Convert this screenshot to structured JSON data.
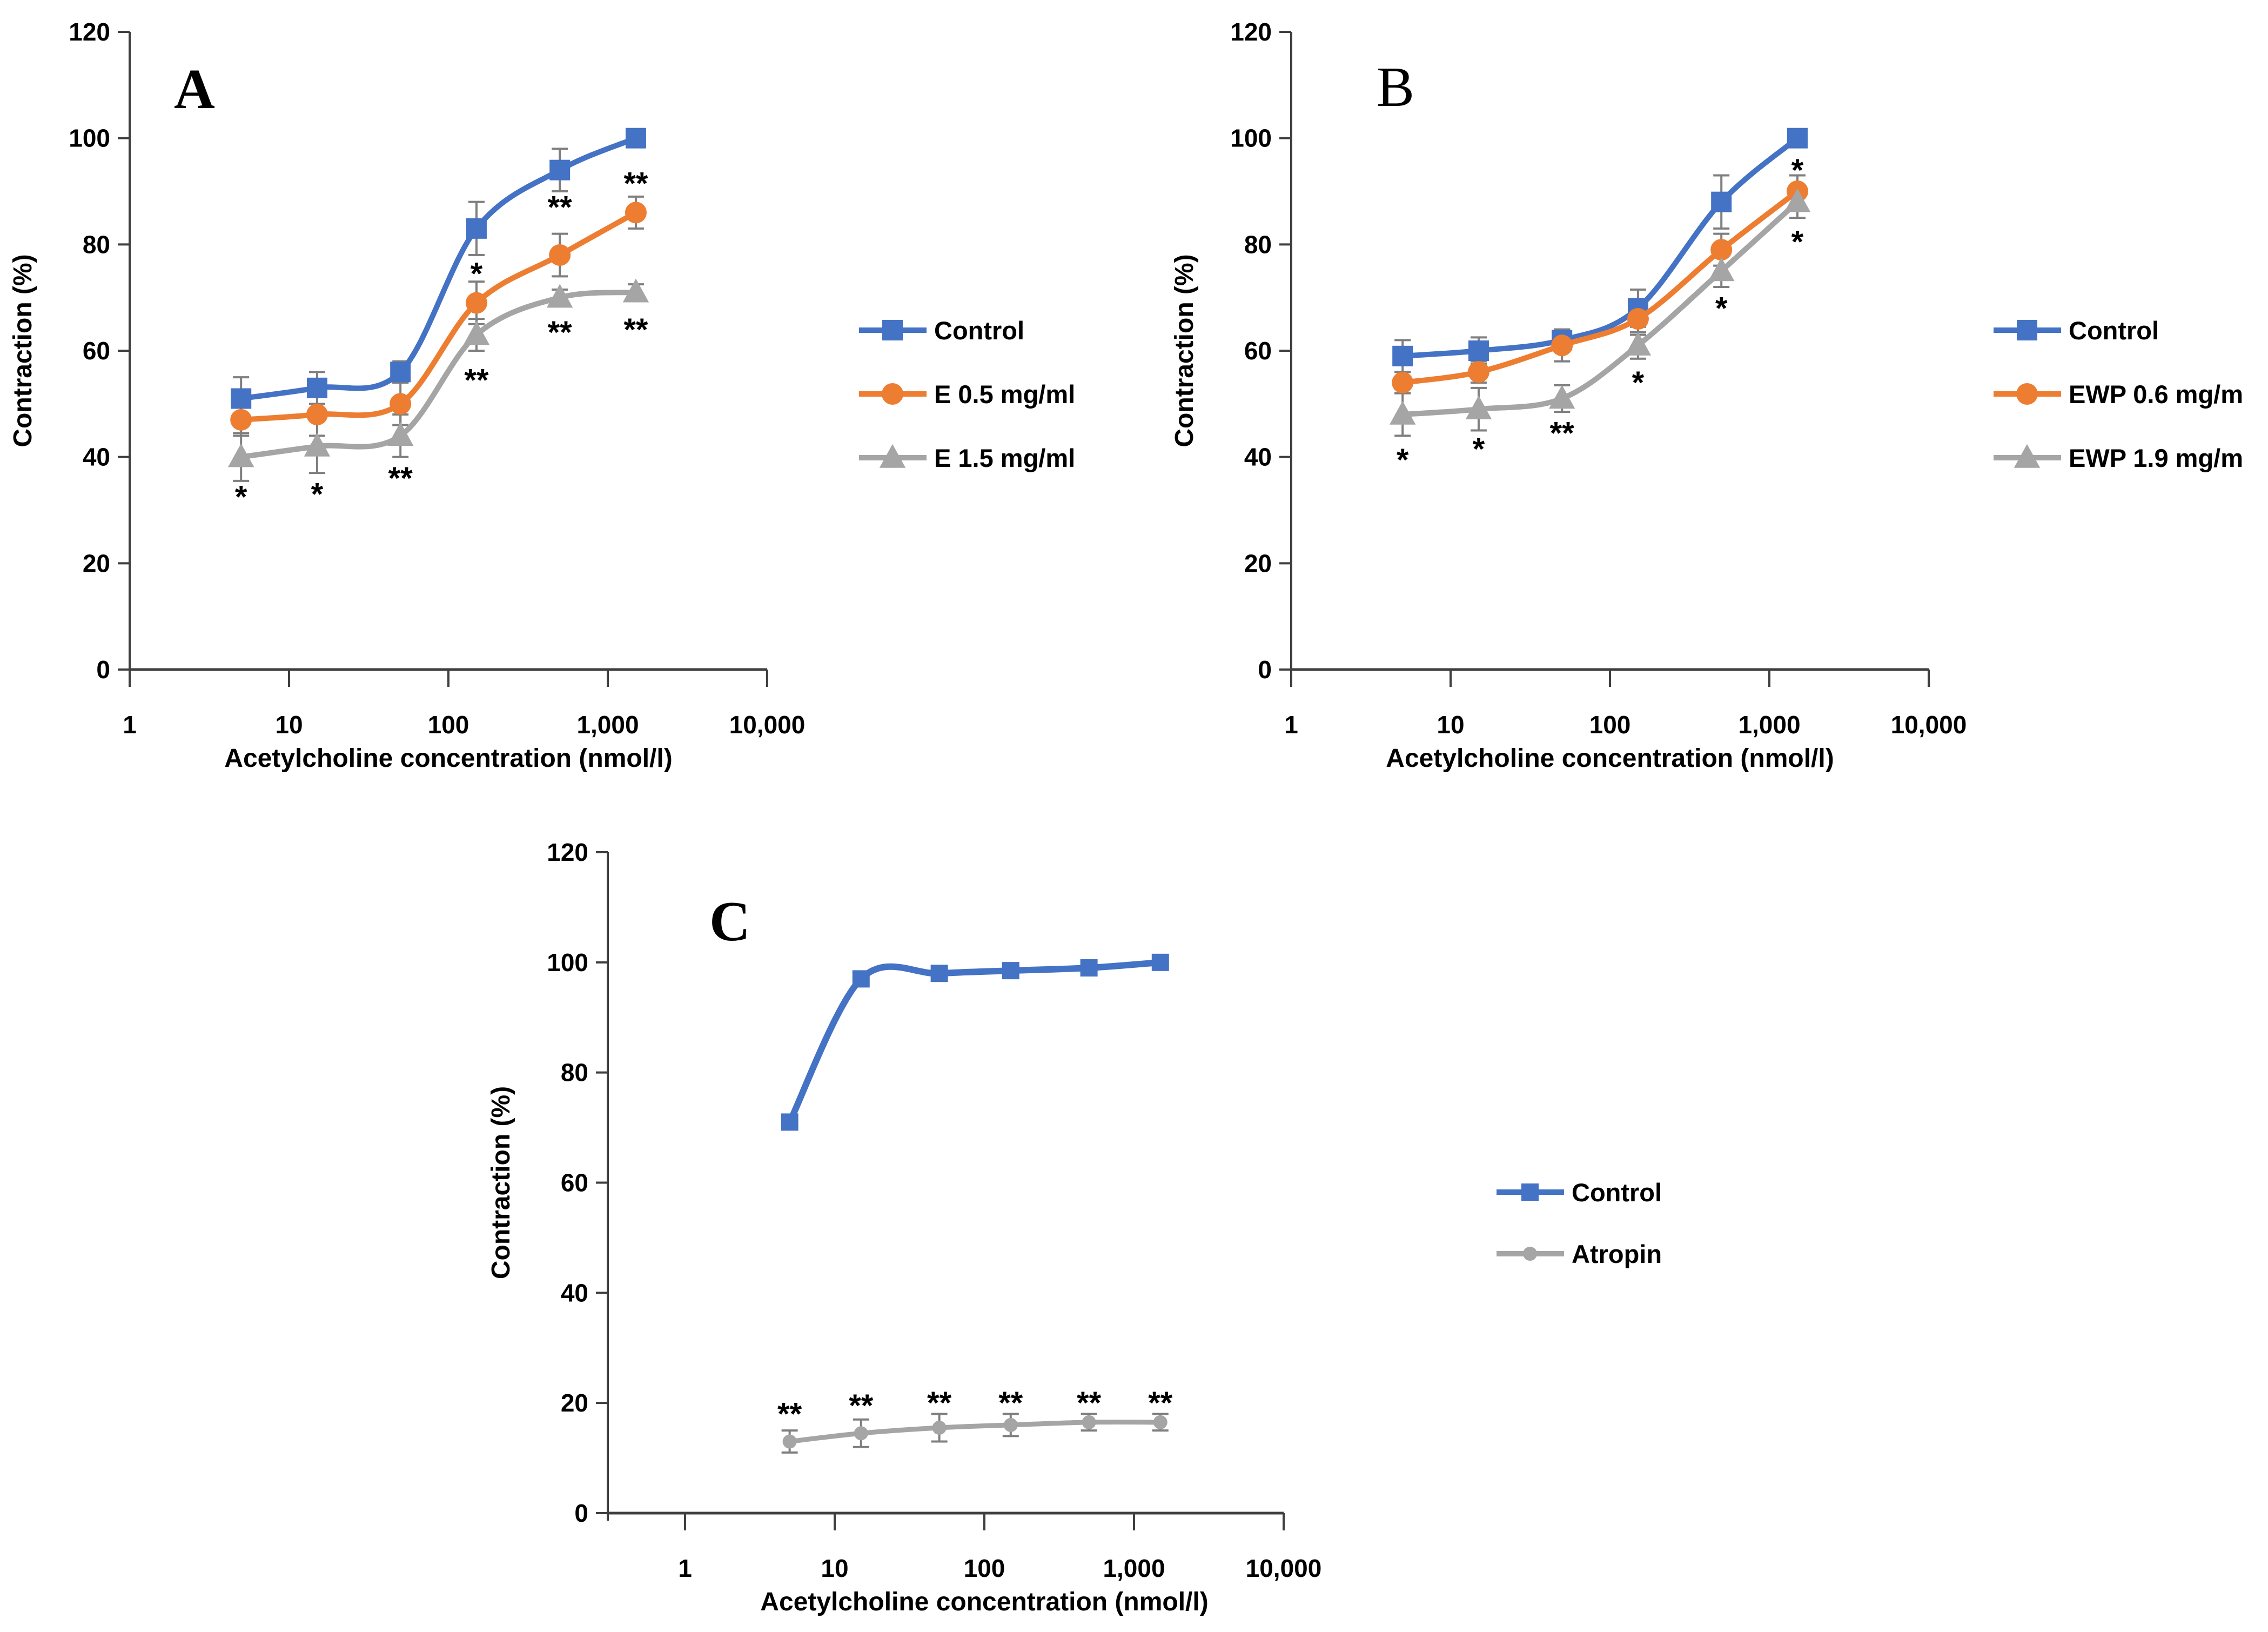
{
  "figure": {
    "background": "#FFFFFF",
    "description": "Three-panel line figure of acetylcholine concentration-response curves"
  },
  "palette": {
    "blue": "#4472C4",
    "orange": "#ED7D31",
    "gray": "#A5A5A5",
    "error_bar": "#7F7F7F",
    "axis": "#3F3F3F",
    "text": "#000000"
  },
  "chart_data": [
    {
      "type": "line",
      "panel_label": "A",
      "x_scale": "log",
      "xlabel": "Acetylcholine concentration (nmol/l)",
      "ylabel": "Contraction (%)",
      "xlim": [
        1,
        10000
      ],
      "ylim": [
        0,
        120
      ],
      "x_tick_values": [
        1,
        10,
        100,
        1000,
        10000
      ],
      "x_tick_labels": [
        "1",
        "10",
        "100",
        "1,000",
        "10,000"
      ],
      "y_ticks": [
        0,
        20,
        40,
        60,
        80,
        100,
        120
      ],
      "legend_position": "right",
      "grid": false,
      "x": [
        5,
        15,
        50,
        150,
        500,
        1500
      ],
      "series": [
        {
          "name": "Control",
          "color": "blue",
          "marker": "square",
          "values": [
            51,
            53,
            56,
            83,
            94,
            100
          ],
          "errors": [
            4,
            3,
            2,
            5,
            4,
            0
          ]
        },
        {
          "name": "E 0.5 mg/ml",
          "color": "orange",
          "marker": "circle",
          "values": [
            47,
            48,
            50,
            69,
            78,
            86
          ],
          "errors": [
            3,
            4,
            4,
            4,
            4,
            3
          ]
        },
        {
          "name": "E 1.5 mg/ml",
          "color": "gray",
          "marker": "triangle",
          "values": [
            40,
            42,
            44,
            63,
            70,
            71
          ],
          "errors": [
            4.5,
            5,
            4,
            3,
            1.5,
            1.5
          ]
        }
      ],
      "annotations": [
        {
          "x": 5,
          "text": "*",
          "at_value": 33.5
        },
        {
          "x": 15,
          "text": "*",
          "at_value": 34
        },
        {
          "x": 50,
          "text": "**",
          "at_value": 37
        },
        {
          "x": 150,
          "text": "*",
          "at_value": 75.5
        },
        {
          "x": 150,
          "text": "**",
          "at_value": 55.5
        },
        {
          "x": 500,
          "text": "**",
          "at_value": 88
        },
        {
          "x": 500,
          "text": "**",
          "at_value": 64.5
        },
        {
          "x": 1500,
          "text": "**",
          "at_value": 92.5
        },
        {
          "x": 1500,
          "text": "**",
          "at_value": 65
        }
      ]
    },
    {
      "type": "line",
      "panel_label": "B",
      "x_scale": "log",
      "xlabel": "Acetylcholine concentration (nmol/l)",
      "ylabel": "Contraction (%)",
      "xlim": [
        1,
        10000
      ],
      "ylim": [
        0,
        120
      ],
      "x_tick_values": [
        1,
        10,
        100,
        1000,
        10000
      ],
      "x_tick_labels": [
        "1",
        "10",
        "100",
        "1,000",
        "10,000"
      ],
      "y_ticks": [
        0,
        20,
        40,
        60,
        80,
        100,
        120
      ],
      "legend_position": "right",
      "grid": false,
      "x": [
        5,
        15,
        50,
        150,
        500,
        1500
      ],
      "series": [
        {
          "name": "Control",
          "color": "blue",
          "marker": "square",
          "values": [
            59,
            60,
            62,
            68,
            88,
            100
          ],
          "errors": [
            3,
            2.5,
            2,
            3.5,
            5,
            0
          ]
        },
        {
          "name": "EWP 0.6 mg/m",
          "color": "orange",
          "marker": "circle",
          "values": [
            54,
            56,
            61,
            66,
            79,
            90
          ],
          "errors": [
            2,
            2,
            3,
            3,
            3,
            3
          ]
        },
        {
          "name": "EWP 1.9 mg/m",
          "color": "gray",
          "marker": "triangle",
          "values": [
            48,
            49,
            51,
            61,
            75,
            88
          ],
          "errors": [
            4,
            4,
            2.5,
            2.5,
            3,
            3
          ]
        }
      ],
      "annotations": [
        {
          "x": 5,
          "text": "*",
          "at_value": 40.5
        },
        {
          "x": 15,
          "text": "*",
          "at_value": 42.5
        },
        {
          "x": 50,
          "text": "**",
          "at_value": 45.5
        },
        {
          "x": 150,
          "text": "*",
          "at_value": 55
        },
        {
          "x": 500,
          "text": "*",
          "at_value": 69
        },
        {
          "x": 1500,
          "text": "*",
          "at_value": 95
        },
        {
          "x": 1500,
          "text": "*",
          "at_value": 81.5
        }
      ]
    },
    {
      "type": "line",
      "panel_label": "C",
      "x_scale": "log",
      "xlabel": "Acetylcholine concentration (nmol/l)",
      "ylabel": "Contraction (%)",
      "xlim": [
        1,
        10000
      ],
      "ylim": [
        0,
        120
      ],
      "x_tick_values": [
        1,
        10,
        100,
        1000,
        10000
      ],
      "x_tick_labels": [
        "1",
        "10",
        "100",
        "1,000",
        "10,000"
      ],
      "y_ticks": [
        0,
        20,
        40,
        60,
        80,
        100,
        120
      ],
      "legend_position": "right",
      "grid": false,
      "x": [
        5,
        15,
        50,
        150,
        500,
        1500
      ],
      "series": [
        {
          "name": "Control",
          "color": "blue",
          "marker": "square",
          "values": [
            71,
            97,
            98,
            98.5,
            99,
            100
          ],
          "errors": [
            0,
            0,
            0,
            0,
            0,
            0
          ]
        },
        {
          "name": "Atropin",
          "color": "gray",
          "marker": "circle",
          "values": [
            13,
            14.5,
            15.5,
            16,
            16.5,
            16.5
          ],
          "errors": [
            2,
            2.5,
            2.5,
            2,
            1.5,
            1.5
          ]
        }
      ],
      "annotations": [
        {
          "x": 5,
          "text": "**",
          "at_value": 19
        },
        {
          "x": 15,
          "text": "**",
          "at_value": 20.5
        },
        {
          "x": 50,
          "text": "**",
          "at_value": 21
        },
        {
          "x": 150,
          "text": "**",
          "at_value": 21
        },
        {
          "x": 500,
          "text": "**",
          "at_value": 21
        },
        {
          "x": 1500,
          "text": "**",
          "at_value": 21
        }
      ]
    }
  ]
}
